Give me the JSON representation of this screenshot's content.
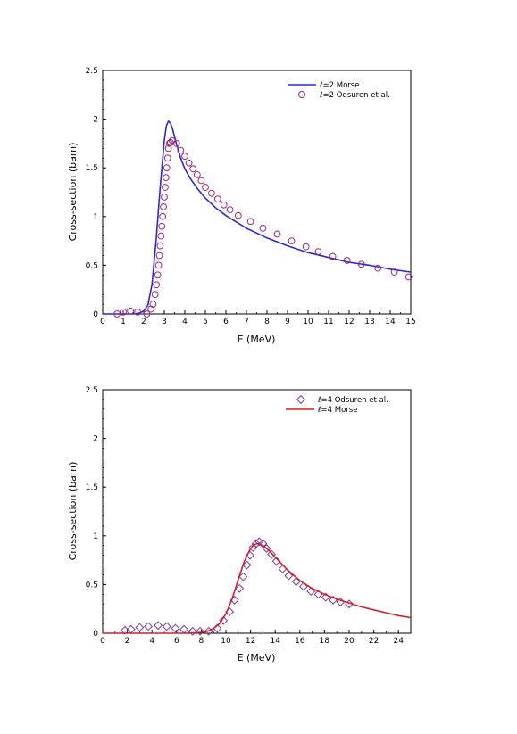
{
  "chart_data": [
    {
      "type": "line",
      "xlabel": "E (MeV)",
      "ylabel": "Cross-section (barn)",
      "xlim": [
        0,
        15
      ],
      "ylim": [
        0,
        2.5
      ],
      "xticks": [
        "0",
        "1",
        "2",
        "3",
        "4",
        "5",
        "6",
        "7",
        "8",
        "9",
        "10",
        "11",
        "12",
        "13",
        "14",
        "15"
      ],
      "yticks": [
        "0",
        "0.5",
        "1",
        "1.5",
        "2",
        "2.5"
      ],
      "legend_position": "top-right",
      "legend": [
        {
          "label": "ℓ=2 Morse",
          "kind": "line",
          "color": "#2a2ad0"
        },
        {
          "label": "ℓ=2 Odsuren et al.",
          "kind": "circle",
          "color": "#9c2a7a"
        }
      ],
      "series": [
        {
          "name": "ℓ=2 Morse",
          "kind": "line",
          "color": "#2a2ad0",
          "x": [
            0,
            1.5,
            1.8,
            2.0,
            2.2,
            2.4,
            2.6,
            2.8,
            3.0,
            3.1,
            3.2,
            3.3,
            3.4,
            3.5,
            3.6,
            3.8,
            4.0,
            4.3,
            4.6,
            5.0,
            5.5,
            6,
            7,
            8,
            9,
            10,
            11,
            12,
            13,
            14,
            15
          ],
          "y": [
            0,
            0,
            0.01,
            0.03,
            0.09,
            0.3,
            0.75,
            1.3,
            1.78,
            1.93,
            1.98,
            1.96,
            1.9,
            1.82,
            1.74,
            1.6,
            1.49,
            1.38,
            1.29,
            1.19,
            1.09,
            1.01,
            0.88,
            0.78,
            0.7,
            0.63,
            0.58,
            0.53,
            0.5,
            0.46,
            0.43
          ]
        },
        {
          "name": "ℓ=2 Odsuren et al.",
          "kind": "scatter",
          "color": "#9c2a7a",
          "x": [
            0.7,
            1.0,
            1.35,
            1.7,
            2.15,
            2.35,
            2.45,
            2.55,
            2.62,
            2.68,
            2.72,
            2.76,
            2.8,
            2.84,
            2.88,
            2.92,
            2.96,
            3.0,
            3.04,
            3.08,
            3.12,
            3.16,
            3.2,
            3.25,
            3.3,
            3.38,
            3.6,
            3.8,
            4.0,
            4.2,
            4.4,
            4.6,
            4.8,
            5.0,
            5.3,
            5.6,
            5.9,
            6.2,
            6.6,
            7.2,
            7.8,
            8.5,
            9.2,
            9.9,
            10.5,
            11.2,
            11.9,
            12.6,
            13.4,
            14.2,
            14.9
          ],
          "y": [
            0.0,
            0.02,
            0.03,
            0.02,
            0.0,
            0.05,
            0.1,
            0.2,
            0.3,
            0.4,
            0.5,
            0.6,
            0.7,
            0.8,
            0.9,
            1.0,
            1.1,
            1.2,
            1.3,
            1.4,
            1.5,
            1.6,
            1.7,
            1.75,
            1.76,
            1.78,
            1.75,
            1.68,
            1.62,
            1.55,
            1.49,
            1.43,
            1.37,
            1.3,
            1.24,
            1.18,
            1.12,
            1.07,
            1.01,
            0.95,
            0.88,
            0.82,
            0.75,
            0.69,
            0.64,
            0.59,
            0.55,
            0.51,
            0.47,
            0.43,
            0.38
          ]
        }
      ]
    },
    {
      "type": "line",
      "xlabel": "E (MeV)",
      "ylabel": "Cross-section (barn)",
      "xlim": [
        0,
        25
      ],
      "ylim": [
        0,
        2.5
      ],
      "xticks": [
        "0",
        "2",
        "4",
        "6",
        "8",
        "10",
        "12",
        "14",
        "16",
        "18",
        "20",
        "22",
        "24"
      ],
      "yticks": [
        "0",
        "0.5",
        "1",
        "1.5",
        "2",
        "2.5"
      ],
      "legend_position": "top-right",
      "legend": [
        {
          "label": "ℓ=4 Odsuren et al.",
          "kind": "diamond",
          "color": "#7a3aa0"
        },
        {
          "label": "ℓ=4 Morse",
          "kind": "line",
          "color": "#d42020"
        }
      ],
      "series": [
        {
          "name": "ℓ=4 Odsuren et al.",
          "kind": "scatter",
          "color": "#7a3aa0",
          "x": [
            1.8,
            2.3,
            3.0,
            3.7,
            4.5,
            5.2,
            5.9,
            6.6,
            7.3,
            7.9,
            8.6,
            9.3,
            9.8,
            10.3,
            10.7,
            11.1,
            11.4,
            11.7,
            11.95,
            12.2,
            12.45,
            12.7,
            13.0,
            13.3,
            13.7,
            14.1,
            14.6,
            15.1,
            15.7,
            16.3,
            16.9,
            17.5,
            18.1,
            18.7,
            19.3,
            20.0
          ],
          "y": [
            0.03,
            0.04,
            0.06,
            0.07,
            0.08,
            0.07,
            0.05,
            0.04,
            0.02,
            0.02,
            0.02,
            0.05,
            0.13,
            0.22,
            0.34,
            0.46,
            0.58,
            0.7,
            0.8,
            0.88,
            0.92,
            0.94,
            0.92,
            0.87,
            0.81,
            0.74,
            0.66,
            0.59,
            0.53,
            0.48,
            0.43,
            0.4,
            0.37,
            0.34,
            0.32,
            0.3
          ]
        },
        {
          "name": "ℓ=4 Morse",
          "kind": "line",
          "color": "#d42020",
          "x": [
            0,
            7,
            8,
            8.5,
            9,
            9.5,
            10,
            10.5,
            11,
            11.5,
            12,
            12.3,
            12.6,
            13,
            13.5,
            14,
            15,
            16,
            17,
            18,
            19,
            20,
            21,
            22,
            23,
            24,
            25
          ],
          "y": [
            0,
            0,
            0.01,
            0.02,
            0.05,
            0.1,
            0.2,
            0.35,
            0.55,
            0.74,
            0.87,
            0.91,
            0.92,
            0.9,
            0.85,
            0.78,
            0.65,
            0.54,
            0.46,
            0.4,
            0.35,
            0.31,
            0.27,
            0.24,
            0.21,
            0.18,
            0.16
          ]
        }
      ]
    }
  ]
}
